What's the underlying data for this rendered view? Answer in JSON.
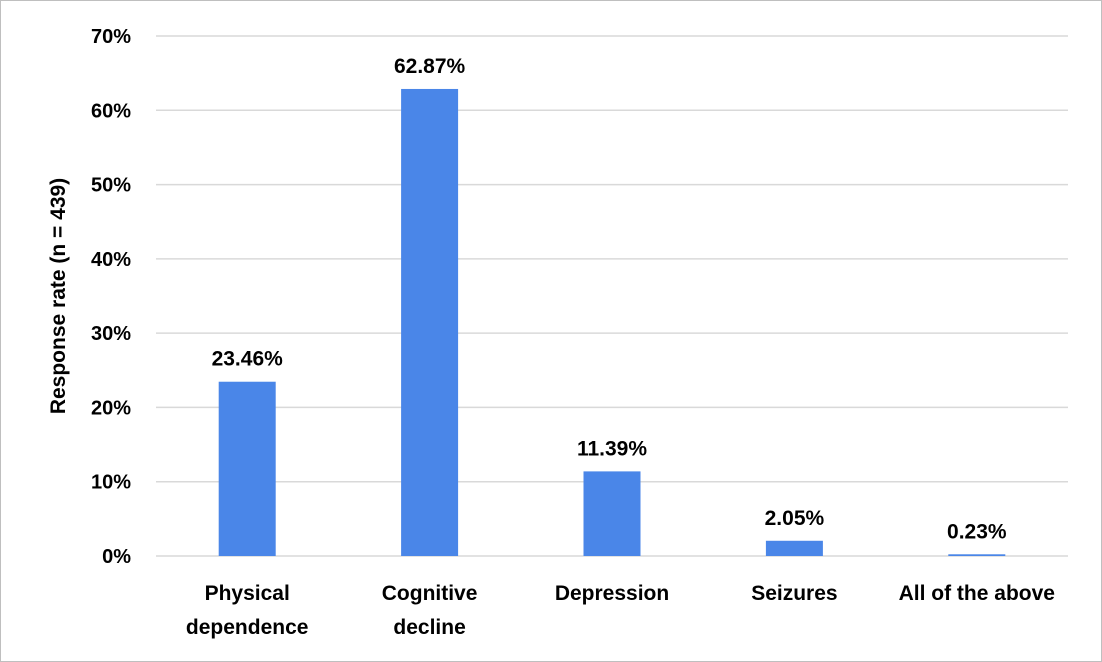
{
  "chart_data": {
    "type": "bar",
    "title": "",
    "xlabel": "",
    "ylabel": "Response rate (n = 439)",
    "ylim": [
      0,
      70
    ],
    "yticks": [
      "0%",
      "10%",
      "20%",
      "30%",
      "40%",
      "50%",
      "60%",
      "70%"
    ],
    "categories": [
      [
        "Physical",
        "dependence"
      ],
      [
        "Cognitive",
        "decline"
      ],
      [
        "Depression"
      ],
      [
        "Seizures"
      ],
      [
        "All of the above"
      ]
    ],
    "values": [
      23.46,
      62.87,
      11.39,
      2.05,
      0.23
    ],
    "data_labels": [
      "23.46%",
      "62.87%",
      "11.39%",
      "2.05%",
      "0.23%"
    ],
    "bar_color": "#4a86e8",
    "grid": true,
    "legend": "none"
  }
}
